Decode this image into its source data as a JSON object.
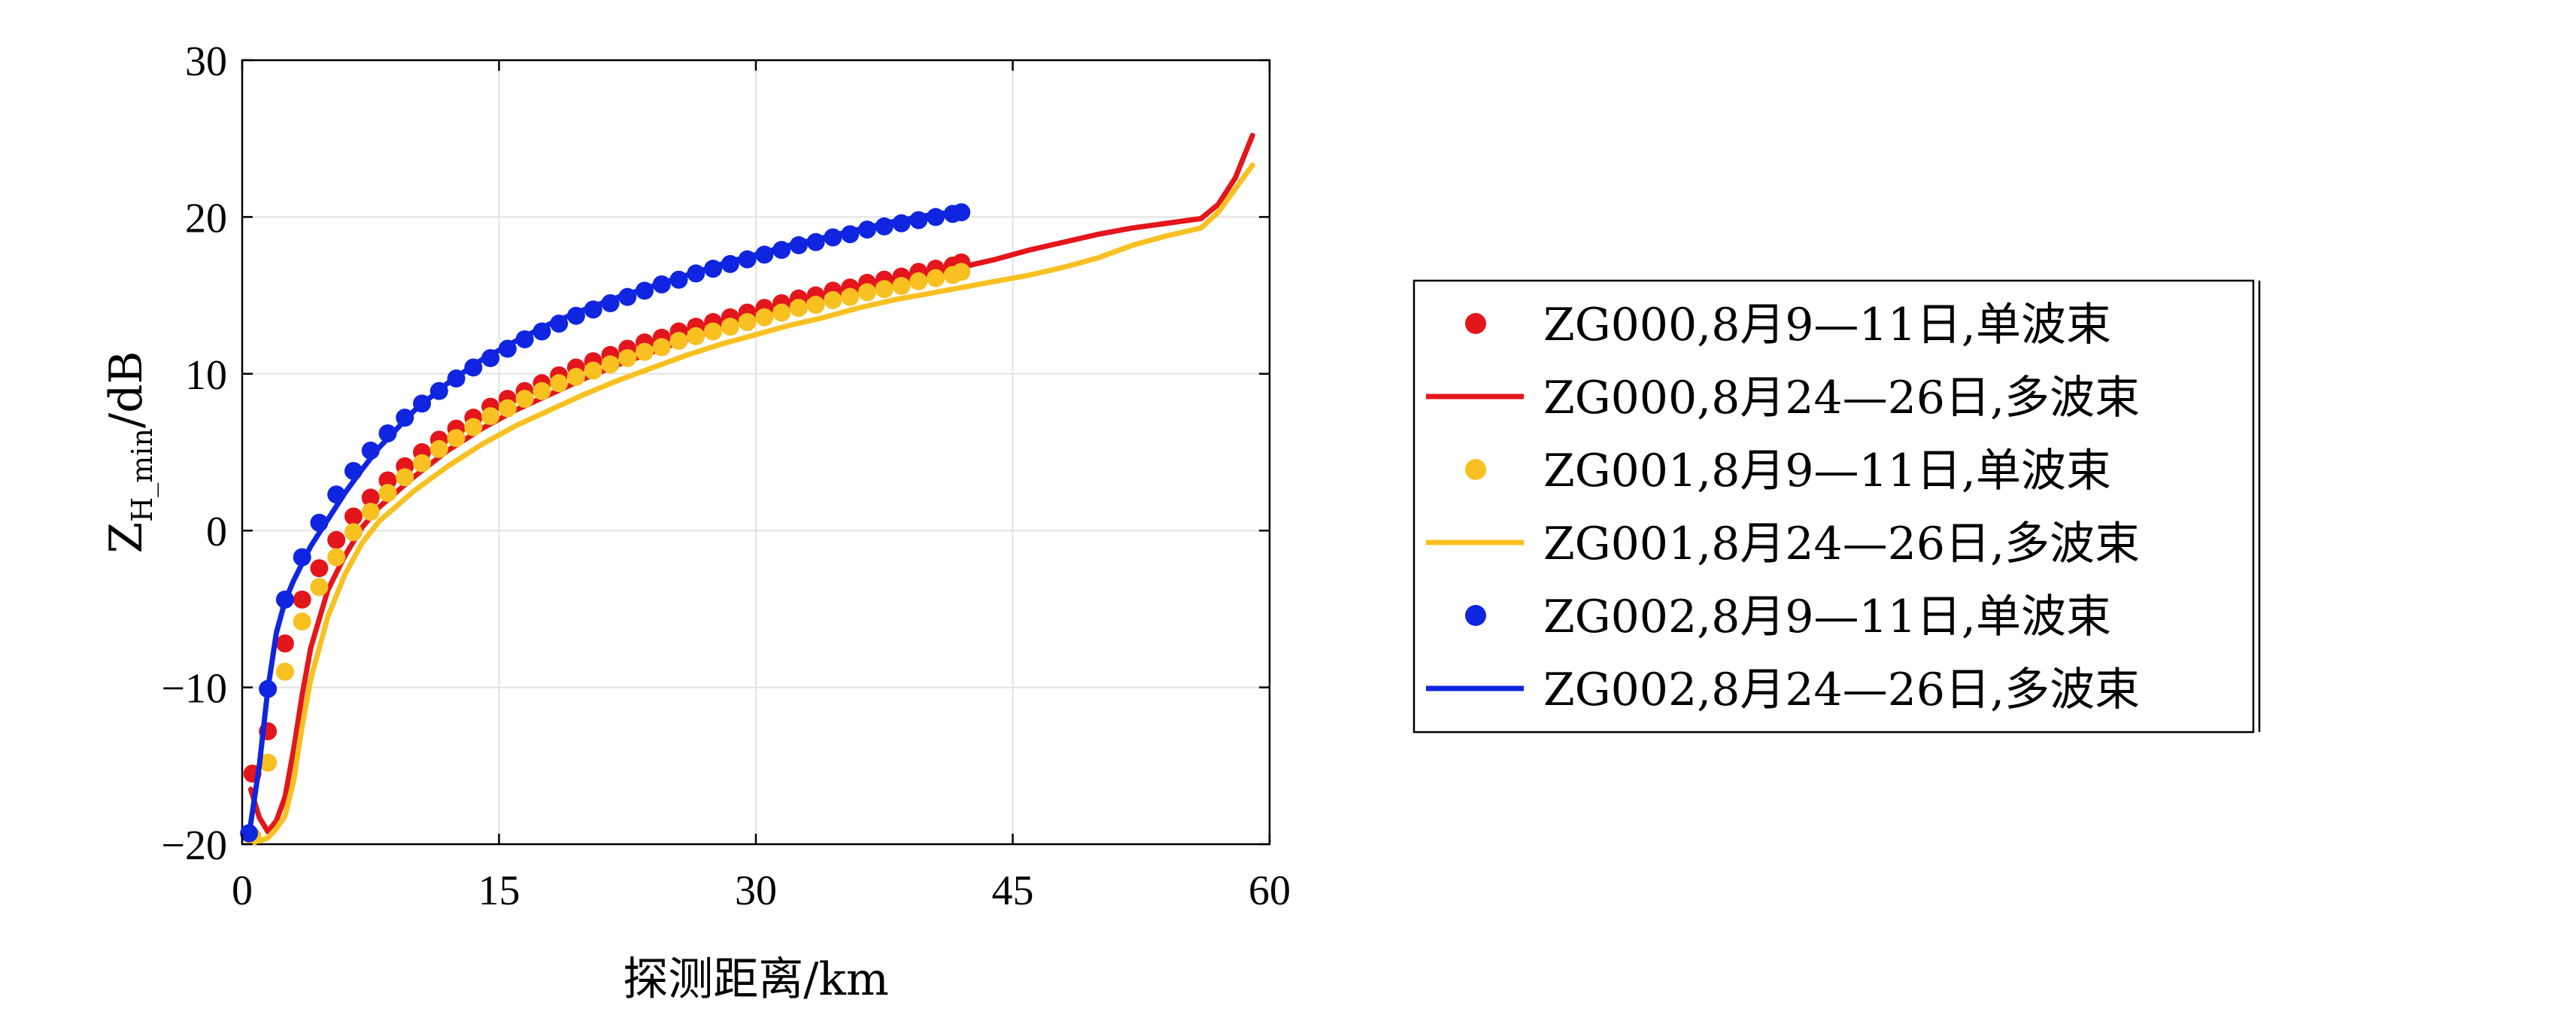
{
  "chart_data": {
    "type": "line",
    "xlabel": "探测距离/km",
    "ylabel_main": "Z",
    "ylabel_sub": "H_min",
    "ylabel_unit": "/dB",
    "xlim": [
      0,
      60
    ],
    "ylim": [
      -20,
      30
    ],
    "xticks": [
      0,
      15,
      30,
      45,
      60
    ],
    "yticks": [
      -20,
      -10,
      0,
      10,
      20,
      30
    ],
    "grid": true,
    "legend_position": "right",
    "series": [
      {
        "name": "ZG000,8月9—11日,单波束",
        "style": "dots",
        "color": "#e3161b",
        "x": [
          0.6,
          1.5,
          2.5,
          3.5,
          4.5,
          5.5,
          6.5,
          7.5,
          8.5,
          9.5,
          10.5,
          11.5,
          12.5,
          13.5,
          14.5,
          15.5,
          16.5,
          17.5,
          18.5,
          19.5,
          20.5,
          21.5,
          22.5,
          23.5,
          24.5,
          25.5,
          26.5,
          27.5,
          28.5,
          29.5,
          30.5,
          31.5,
          32.5,
          33.5,
          34.5,
          35.5,
          36.5,
          37.5,
          38.5,
          39.5,
          40.5,
          41.5,
          42.0
        ],
        "y": [
          -15.5,
          -12.8,
          -7.2,
          -4.4,
          -2.4,
          -0.6,
          0.9,
          2.1,
          3.2,
          4.1,
          5.0,
          5.8,
          6.5,
          7.2,
          7.9,
          8.4,
          8.9,
          9.4,
          9.9,
          10.4,
          10.8,
          11.2,
          11.6,
          12.0,
          12.3,
          12.7,
          13.0,
          13.3,
          13.6,
          13.9,
          14.2,
          14.5,
          14.8,
          15.0,
          15.3,
          15.5,
          15.8,
          16.0,
          16.2,
          16.5,
          16.7,
          16.9,
          17.1
        ]
      },
      {
        "name": "ZG000,8月24—26日,多波束",
        "style": "line",
        "color": "#e3161b",
        "x": [
          0.5,
          1.0,
          1.5,
          2.0,
          2.5,
          3.0,
          3.5,
          4.0,
          5.0,
          6.0,
          7.0,
          8.0,
          10.0,
          12.0,
          14.0,
          16.0,
          18.0,
          20.0,
          22.0,
          24.0,
          26.0,
          28.0,
          30.0,
          32.0,
          34.0,
          36.0,
          38.0,
          40.0,
          42.0,
          44.0,
          46.0,
          48.0,
          50.0,
          52.0,
          54.0,
          56.0,
          57.0,
          58.0,
          59.0
        ],
        "y": [
          -16.5,
          -18.3,
          -19.2,
          -18.5,
          -17.0,
          -14.0,
          -10.5,
          -7.5,
          -3.8,
          -1.6,
          0.2,
          1.5,
          3.4,
          5.1,
          6.5,
          7.7,
          8.7,
          9.7,
          10.6,
          11.4,
          12.2,
          12.9,
          13.5,
          14.1,
          14.6,
          15.2,
          15.8,
          16.3,
          16.8,
          17.3,
          17.9,
          18.4,
          18.9,
          19.3,
          19.6,
          19.9,
          20.8,
          22.5,
          25.2
        ]
      },
      {
        "name": "ZG001,8月9—11日,单波束",
        "style": "dots",
        "color": "#f8c021",
        "x": [
          0.6,
          1.5,
          2.5,
          3.5,
          4.5,
          5.5,
          6.5,
          7.5,
          8.5,
          9.5,
          10.5,
          11.5,
          12.5,
          13.5,
          14.5,
          15.5,
          16.5,
          17.5,
          18.5,
          19.5,
          20.5,
          21.5,
          22.5,
          23.5,
          24.5,
          25.5,
          26.5,
          27.5,
          28.5,
          29.5,
          30.5,
          31.5,
          32.5,
          33.5,
          34.5,
          35.5,
          36.5,
          37.5,
          38.5,
          39.5,
          40.5,
          41.5,
          42.0
        ],
        "y": [
          -19.5,
          -14.8,
          -9.0,
          -5.8,
          -3.6,
          -1.7,
          -0.1,
          1.2,
          2.4,
          3.4,
          4.3,
          5.2,
          5.9,
          6.6,
          7.3,
          7.8,
          8.4,
          8.9,
          9.4,
          9.8,
          10.2,
          10.6,
          11.0,
          11.4,
          11.7,
          12.1,
          12.4,
          12.7,
          13.0,
          13.3,
          13.6,
          13.9,
          14.2,
          14.4,
          14.7,
          14.9,
          15.2,
          15.4,
          15.6,
          15.9,
          16.1,
          16.3,
          16.5
        ]
      },
      {
        "name": "ZG001,8月24—26日,多波束",
        "style": "line",
        "color": "#f8c021",
        "x": [
          0.5,
          1.0,
          1.5,
          2.0,
          2.5,
          3.0,
          3.5,
          4.0,
          5.0,
          6.0,
          7.0,
          8.0,
          10.0,
          12.0,
          14.0,
          16.0,
          18.0,
          20.0,
          22.0,
          24.0,
          26.0,
          28.0,
          30.0,
          32.0,
          34.0,
          36.0,
          38.0,
          40.0,
          42.0,
          44.0,
          46.0,
          48.0,
          50.0,
          52.0,
          54.0,
          56.0,
          57.0,
          58.0,
          59.0
        ],
        "y": [
          -19.6,
          -19.8,
          -19.6,
          -19.0,
          -18.2,
          -16.0,
          -12.5,
          -9.5,
          -5.5,
          -2.8,
          -0.8,
          0.6,
          2.5,
          4.1,
          5.5,
          6.7,
          7.7,
          8.7,
          9.6,
          10.4,
          11.2,
          11.9,
          12.5,
          13.1,
          13.6,
          14.2,
          14.7,
          15.1,
          15.5,
          15.9,
          16.3,
          16.8,
          17.4,
          18.2,
          18.8,
          19.3,
          20.3,
          21.8,
          23.3
        ]
      },
      {
        "name": "ZG002,8月9—11日,单波束",
        "style": "dots",
        "color": "#0f25e0",
        "x": [
          0.4,
          1.5,
          2.5,
          3.5,
          4.5,
          5.5,
          6.5,
          7.5,
          8.5,
          9.5,
          10.5,
          11.5,
          12.5,
          13.5,
          14.5,
          15.5,
          16.5,
          17.5,
          18.5,
          19.5,
          20.5,
          21.5,
          22.5,
          23.5,
          24.5,
          25.5,
          26.5,
          27.5,
          28.5,
          29.5,
          30.5,
          31.5,
          32.5,
          33.5,
          34.5,
          35.5,
          36.5,
          37.5,
          38.5,
          39.5,
          40.5,
          41.5,
          42.0
        ],
        "y": [
          -19.3,
          -10.1,
          -4.4,
          -1.7,
          0.5,
          2.3,
          3.8,
          5.1,
          6.2,
          7.2,
          8.1,
          8.9,
          9.7,
          10.4,
          11.0,
          11.6,
          12.2,
          12.7,
          13.2,
          13.7,
          14.1,
          14.5,
          14.9,
          15.3,
          15.7,
          16.0,
          16.4,
          16.7,
          17.0,
          17.3,
          17.6,
          17.9,
          18.2,
          18.4,
          18.7,
          18.9,
          19.2,
          19.4,
          19.6,
          19.8,
          20.0,
          20.2,
          20.3
        ]
      },
      {
        "name": "ZG002,8月24—26日,多波束",
        "style": "line",
        "color": "#0f25e0",
        "x": [
          0.4,
          1.0,
          1.5,
          2.0,
          2.5,
          3.0,
          4.0,
          5.0,
          6.0,
          7.0,
          8.0,
          10.0,
          12.0,
          14.0,
          16.0,
          18.0,
          20.0,
          22.0,
          24.0,
          26.0,
          28.0,
          30.0,
          32.0,
          34.0,
          36.0,
          38.0,
          40.0,
          42.0
        ],
        "y": [
          -19.4,
          -15.0,
          -10.1,
          -6.5,
          -4.5,
          -3.2,
          -1.0,
          0.7,
          2.4,
          3.9,
          5.3,
          7.6,
          9.4,
          10.9,
          12.1,
          13.2,
          14.1,
          14.9,
          15.6,
          16.3,
          17.0,
          17.6,
          18.2,
          18.7,
          19.2,
          19.7,
          20.1,
          20.4
        ]
      }
    ]
  }
}
